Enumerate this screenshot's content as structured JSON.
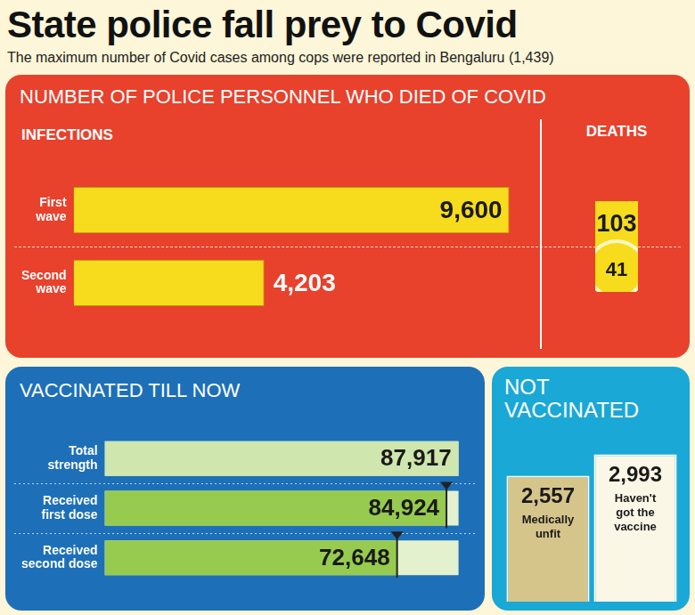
{
  "title": "State police fall prey to Covid",
  "subtitle": "The maximum number of Covid cases among cops were reported in Bengaluru (1,439)",
  "chart_data": [
    {
      "type": "bar",
      "orientation": "horizontal",
      "title": "NUMBER OF POLICE PERSONNEL WHO DIED OF COVID",
      "categories": [
        "First wave",
        "Second wave"
      ],
      "series": [
        {
          "name": "INFECTIONS",
          "values": [
            9600,
            4203
          ],
          "value_labels": [
            "9,600",
            "4,203"
          ],
          "color": "#f6dc1c"
        },
        {
          "name": "DEATHS",
          "type": "bubble",
          "values": [
            103,
            41
          ],
          "color": "#f6dc1c"
        }
      ],
      "xlim": [
        0,
        10000
      ],
      "grid": false,
      "data_labels": true,
      "tick_labels": "y"
    },
    {
      "type": "bar",
      "orientation": "horizontal",
      "title": "VACCINATED TILL NOW",
      "categories": [
        "Total strength",
        "Received first dose",
        "Received second dose"
      ],
      "values": [
        87917,
        84924,
        72648
      ],
      "value_labels": [
        "87,917",
        "84,924",
        "72,648"
      ],
      "colors": [
        "#cfe6ae",
        "#96cb4f",
        "#96cb4f"
      ],
      "xlim": [
        0,
        90000
      ],
      "grid": false,
      "data_labels": true,
      "tick_labels": "y"
    },
    {
      "type": "bar",
      "title": "NOT VACCINATED",
      "categories": [
        "Medically unfit",
        "Haven't got the vaccine"
      ],
      "values": [
        2557,
        2993
      ],
      "value_labels": [
        "2,557",
        "2,993"
      ],
      "colors": [
        "#d6c58b",
        "#fbf7e6"
      ],
      "ylim": [
        0,
        3400
      ],
      "grid": false,
      "data_labels": true,
      "tick_labels": false
    }
  ]
}
